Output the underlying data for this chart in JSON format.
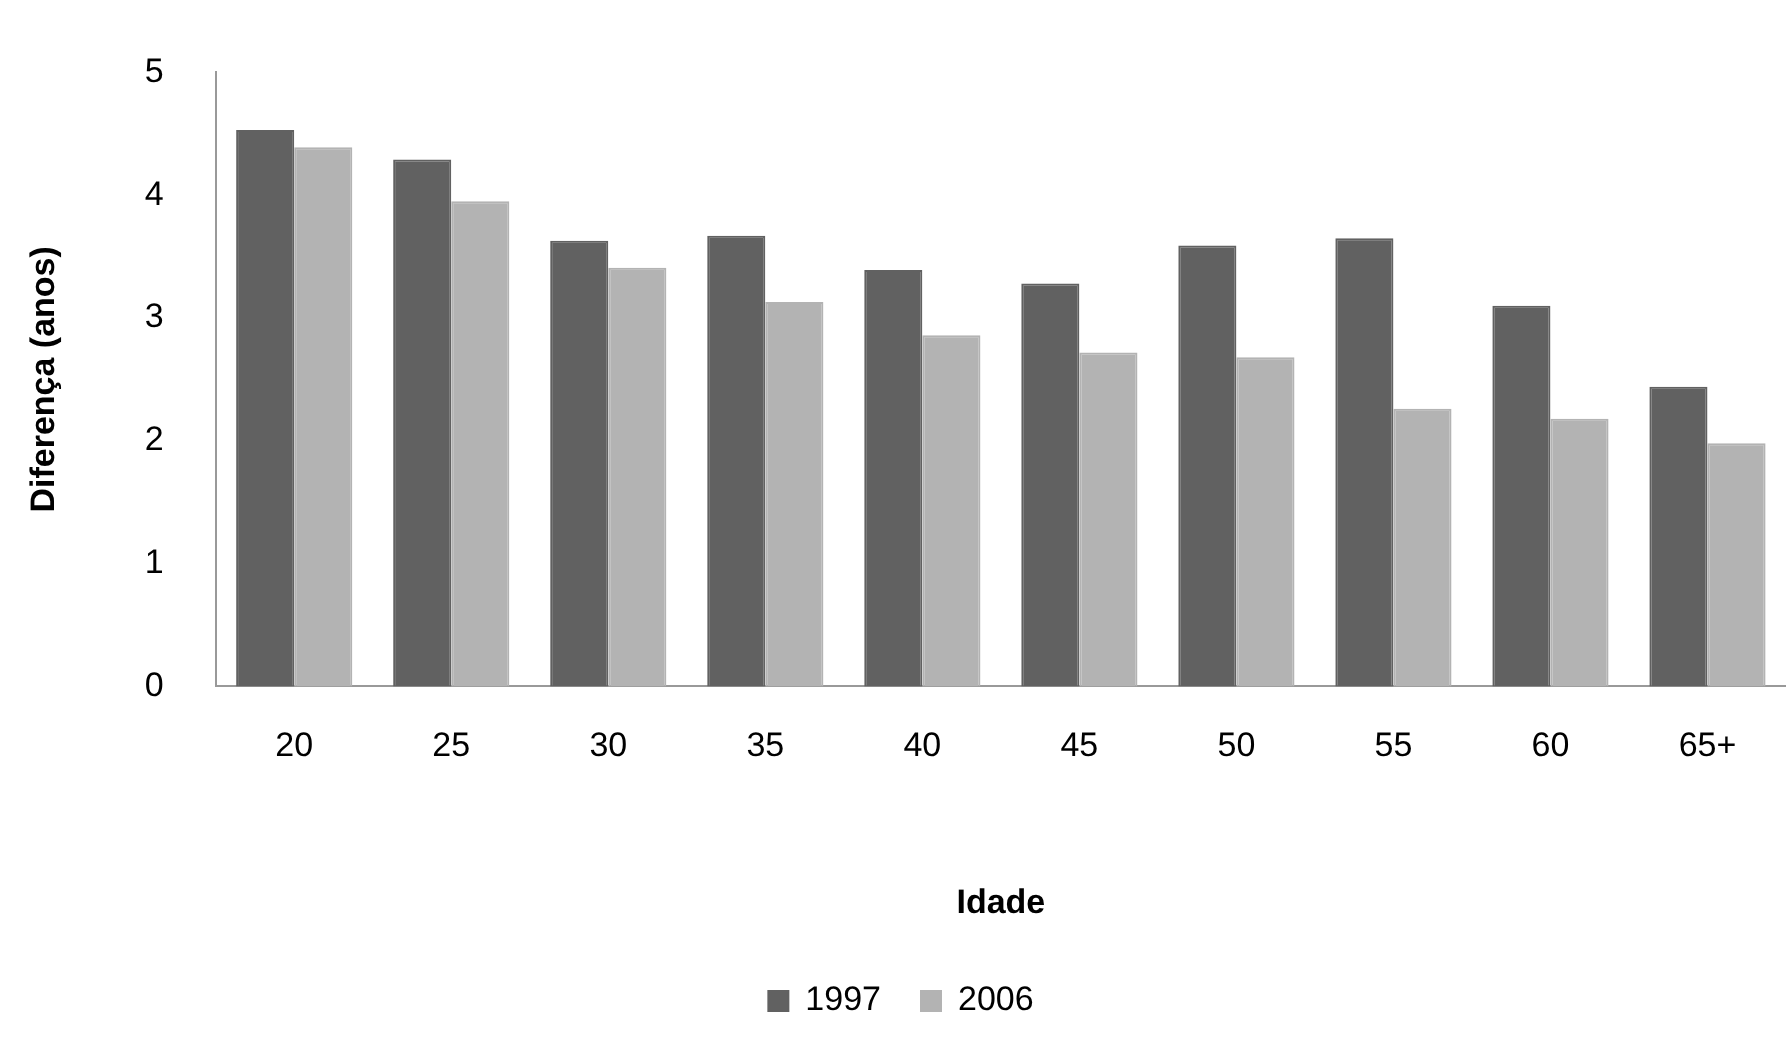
{
  "chart_data": {
    "type": "bar",
    "xlabel": "Idade",
    "ylabel": "Diferença (anos)",
    "categories": [
      "20",
      "25",
      "30",
      "35",
      "40",
      "45",
      "50",
      "55",
      "60",
      "65+"
    ],
    "series": [
      {
        "name": "1997",
        "color": "#616161",
        "values": [
          4.53,
          4.29,
          3.63,
          3.67,
          3.39,
          3.28,
          3.59,
          3.65,
          3.1,
          2.44
        ]
      },
      {
        "name": "2006",
        "color": "#b3b3b3",
        "values": [
          4.39,
          3.95,
          3.41,
          3.13,
          2.86,
          2.72,
          2.68,
          2.26,
          2.18,
          1.98
        ]
      }
    ],
    "ylim": [
      0,
      5
    ],
    "yticks": [
      0,
      1,
      2,
      3,
      4,
      5
    ],
    "grid": false,
    "legend": "bottom"
  }
}
